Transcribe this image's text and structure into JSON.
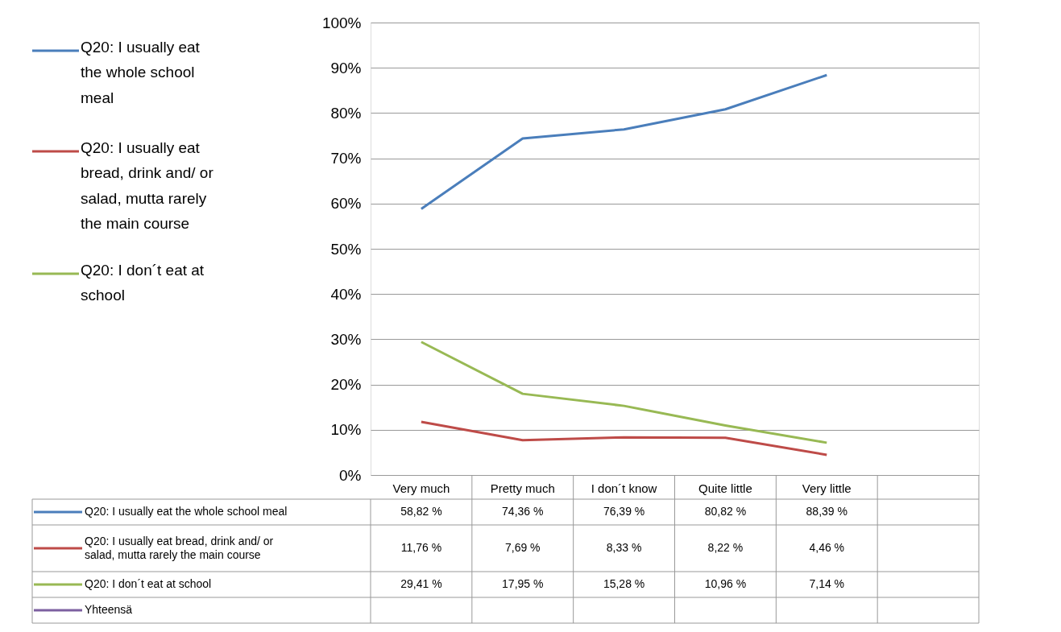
{
  "chart_data": {
    "type": "line",
    "categories": [
      "Very much",
      "Pretty much",
      "I don´t know",
      "Quite little",
      "Very little",
      null
    ],
    "series": [
      {
        "name": "Q20: I usually eat the whole school meal",
        "color": "#4a7ebb",
        "values": [
          58.82,
          74.36,
          76.39,
          80.82,
          88.39,
          null
        ],
        "value_labels": [
          "58,82 %",
          "74,36 %",
          "76,39 %",
          "80,82 %",
          "88,39 %",
          null
        ]
      },
      {
        "name": "Q20: I usually eat bread, drink and/ or salad, mutta rarely the main course",
        "color": "#be4b48",
        "values": [
          11.76,
          7.69,
          8.33,
          8.22,
          4.46,
          null
        ],
        "value_labels": [
          "11,76 %",
          "7,69 %",
          "8,33 %",
          "8,22 %",
          "4,46 %",
          null
        ]
      },
      {
        "name": "Q20: I don´t eat at school",
        "color": "#98b954",
        "values": [
          29.41,
          17.95,
          15.28,
          10.96,
          7.14,
          null
        ],
        "value_labels": [
          "29,41 %",
          "17,95 %",
          "15,28 %",
          "10,96 %",
          "7,14 %",
          null
        ]
      },
      {
        "name": "Yhteensä",
        "color": "#7d60a0",
        "values": [
          null,
          null,
          null,
          null,
          null,
          null
        ],
        "value_labels": [
          null,
          null,
          null,
          null,
          null,
          null
        ]
      }
    ],
    "ylim": [
      0,
      100
    ],
    "yticks": [
      {
        "value": 0,
        "label": "0%"
      },
      {
        "value": 10,
        "label": "10%"
      },
      {
        "value": 20,
        "label": "20%"
      },
      {
        "value": 30,
        "label": "30%"
      },
      {
        "value": 40,
        "label": "40%"
      },
      {
        "value": 50,
        "label": "50%"
      },
      {
        "value": 60,
        "label": "60%"
      },
      {
        "value": 70,
        "label": "70%"
      },
      {
        "value": 80,
        "label": "80%"
      },
      {
        "value": 90,
        "label": "90%"
      },
      {
        "value": 100,
        "label": "100%"
      }
    ],
    "grid": "y",
    "legend": "left",
    "marker": "none",
    "line_style": "solid"
  }
}
